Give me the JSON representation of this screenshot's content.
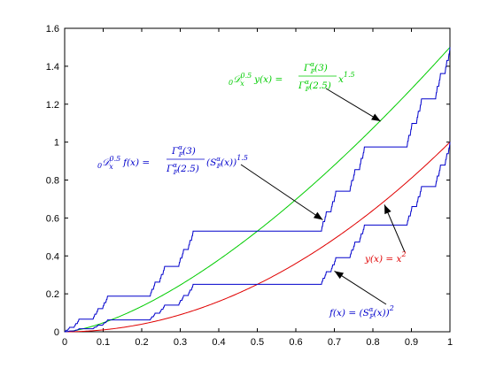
{
  "chart_data": {
    "type": "line",
    "title": "",
    "xlabel": "",
    "ylabel": "",
    "xlim": [
      0,
      1
    ],
    "ylim": [
      0,
      1.6
    ],
    "grid": false,
    "x_ticks": [
      0,
      0.1,
      0.2,
      0.3,
      0.4,
      0.5,
      0.6,
      0.7,
      0.8,
      0.9,
      1
    ],
    "x_tick_labels": [
      "0",
      "0.1",
      "0.2",
      "0.3",
      "0.4",
      "0.5",
      "0.6",
      "0.7",
      "0.8",
      "0.9",
      "1"
    ],
    "y_ticks": [
      0,
      0.2,
      0.4,
      0.6,
      0.8,
      1,
      1.2,
      1.4,
      1.6
    ],
    "y_tick_labels": [
      "0",
      "0.2",
      "0.4",
      "0.6",
      "0.8",
      "1",
      "1.2",
      "1.4",
      "1.6"
    ],
    "series": [
      {
        "key": "green",
        "color": "#00cc00",
        "kind": "power",
        "coef": 1.5,
        "exponent": 1.5
      },
      {
        "key": "red",
        "color": "#e00000",
        "kind": "power",
        "coef": 1.0,
        "exponent": 2
      },
      {
        "key": "blue-upper",
        "color": "#0000cc",
        "kind": "staircase",
        "coef": 1.5,
        "exponent": 1.5
      },
      {
        "key": "blue-lower",
        "color": "#0000cc",
        "kind": "staircase",
        "coef": 1.0,
        "exponent": 2
      }
    ],
    "annotations": [
      {
        "key": "green",
        "color": "#00cc00",
        "text": "₀𝒟ₓ^0.5 y(x) = Γ𝔽^α(3) / Γ𝔽^α(2.5) x^1.5",
        "arrow_to": [
          0.82,
          1.11
        ]
      },
      {
        "key": "blue-upper",
        "color": "#0000cc",
        "text": "₀𝒟ₓ^0.5 f(x) = Γ𝔽^α(3) / Γ𝔽^α(2.5) (S𝔽^α(x))^1.5",
        "arrow_to": [
          0.67,
          0.59
        ]
      },
      {
        "key": "red",
        "color": "#e00000",
        "text": "y(x) = x²",
        "arrow_to": [
          0.83,
          0.67
        ]
      },
      {
        "key": "blue-lower",
        "color": "#0000cc",
        "text": "f(x) = (S𝔽^α(x))²",
        "arrow_to": [
          0.7,
          0.32
        ]
      }
    ]
  }
}
